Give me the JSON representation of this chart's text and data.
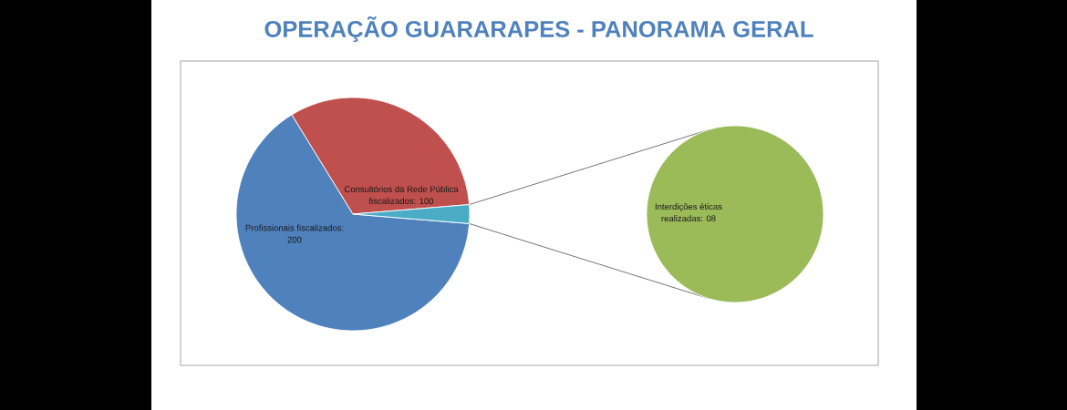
{
  "chart_data": [
    {
      "type": "pie",
      "title": "OPERAÇÃO GUARARAPES - PANORAMA GERAL",
      "categories": [
        "Profissionais fiscalizados: 200",
        "Consultórios da Rede Pública fiscalizados: 100",
        null
      ],
      "values": [
        200,
        100,
        8
      ],
      "colors": [
        "#4f81bd",
        "#c0504d",
        "#4bacc6"
      ]
    },
    {
      "type": "pie",
      "categories": [
        "Interdições éticas realizadas: 08"
      ],
      "values": [
        8
      ],
      "colors": [
        "#9bbb59"
      ]
    }
  ]
}
